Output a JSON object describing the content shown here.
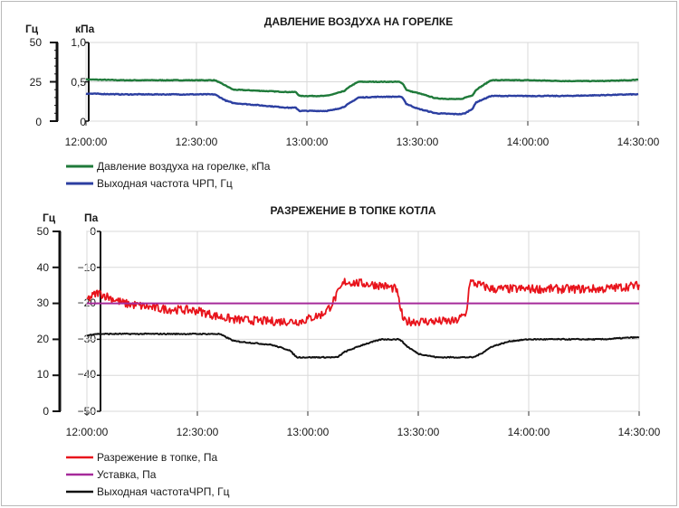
{
  "charts": [
    {
      "title": "ДАВЛЕНИЕ ВОЗДУХА НА ГОРЕЛКЕ",
      "left_unit": "Гц",
      "right_unit": "кПа",
      "left_ticks": [
        "50",
        "25",
        "0"
      ],
      "right_ticks": [
        "1,0",
        "0,5",
        "0"
      ],
      "x_ticks": [
        "12:00:00",
        "12:30:00",
        "13:00:00",
        "13:30:00",
        "14:00:00",
        "14:30:00"
      ],
      "legend": [
        "Давление воздуха на горелке, кПа",
        "Выходная частота ЧРП, Гц"
      ]
    },
    {
      "title": "РАЗРЕЖЕНИЕ В ТОПКЕ КОТЛА",
      "left_unit": "Гц",
      "right_unit": "Па",
      "left_ticks": [
        "50",
        "40",
        "30",
        "20",
        "10",
        "0"
      ],
      "right_ticks": [
        "0",
        "−10",
        "−20",
        "−30",
        "−40",
        "−50"
      ],
      "x_ticks": [
        "12:00:00",
        "12:30:00",
        "13:00:00",
        "13:30:00",
        "14:00:00",
        "14:30:00"
      ],
      "legend": [
        "Разрежение в топке, Па",
        "Уставка, Па",
        "Выходная частотаЧРП, Гц"
      ]
    }
  ],
  "chart_data": [
    {
      "type": "line",
      "title": "ДАВЛЕНИЕ ВОЗДУХА НА ГОРЕЛКЕ",
      "x_unit": "time",
      "x_range": [
        "12:00:00",
        "14:30:00"
      ],
      "left_axis": {
        "label": "Гц",
        "range": [
          0,
          50
        ],
        "ticks": [
          0,
          25,
          50
        ]
      },
      "right_axis": {
        "label": "кПа",
        "range": [
          0,
          1.0
        ],
        "ticks": [
          0,
          0.5,
          1.0
        ]
      },
      "series": [
        {
          "name": "Давление воздуха на горелке, кПа",
          "axis": "right",
          "color": "#1f7a3a",
          "noise": 0.004,
          "x": [
            "12:00",
            "12:10",
            "12:20",
            "12:30",
            "12:35",
            "12:38",
            "12:40",
            "12:45",
            "12:50",
            "12:55",
            "12:57",
            "12:58",
            "13:05",
            "13:07",
            "13:10",
            "13:12",
            "13:14",
            "13:20",
            "13:25",
            "13:26",
            "13:27",
            "13:28",
            "13:30",
            "13:35",
            "13:40",
            "13:42",
            "13:43",
            "13:45",
            "13:46",
            "13:50",
            "14:00",
            "14:10",
            "14:20",
            "14:28",
            "14:30"
          ],
          "y": [
            0.53,
            0.52,
            0.52,
            0.52,
            0.52,
            0.45,
            0.4,
            0.39,
            0.38,
            0.37,
            0.37,
            0.32,
            0.32,
            0.34,
            0.38,
            0.45,
            0.5,
            0.5,
            0.5,
            0.48,
            0.4,
            0.38,
            0.36,
            0.29,
            0.28,
            0.28,
            0.3,
            0.33,
            0.4,
            0.52,
            0.52,
            0.51,
            0.51,
            0.52,
            0.53
          ]
        },
        {
          "name": "Выходная частота ЧРП, Гц",
          "axis": "left",
          "color": "#2c3fa1",
          "noise": 0.25,
          "x": [
            "12:00",
            "12:10",
            "12:20",
            "12:30",
            "12:35",
            "12:38",
            "12:40",
            "12:45",
            "12:50",
            "12:55",
            "12:57",
            "12:58",
            "13:05",
            "13:07",
            "13:10",
            "13:12",
            "13:14",
            "13:20",
            "13:25",
            "13:26",
            "13:27",
            "13:28",
            "13:30",
            "13:35",
            "13:40",
            "13:42",
            "13:43",
            "13:45",
            "13:46",
            "13:50",
            "14:00",
            "14:10",
            "14:20",
            "14:28",
            "14:30"
          ],
          "y": [
            17.5,
            17,
            17,
            17,
            17,
            13,
            11.5,
            10.5,
            9.5,
            8.5,
            8.5,
            6.5,
            6.5,
            7,
            9,
            12,
            15,
            15.5,
            15.5,
            15,
            11,
            10,
            8,
            5,
            4.5,
            4.5,
            5,
            8,
            12,
            16,
            16,
            16,
            16.5,
            17,
            17
          ]
        }
      ]
    },
    {
      "type": "line",
      "title": "РАЗРЕЖЕНИЕ В ТОПКЕ КОТЛА",
      "x_unit": "time",
      "x_range": [
        "12:00:00",
        "14:30:00"
      ],
      "left_axis": {
        "label": "Гц",
        "range": [
          0,
          50
        ],
        "ticks": [
          0,
          10,
          20,
          30,
          40,
          50
        ]
      },
      "right_axis": {
        "label": "Па",
        "range": [
          -50,
          0
        ],
        "ticks": [
          -50,
          -40,
          -30,
          -20,
          -10,
          0
        ]
      },
      "series": [
        {
          "name": "Разрежение в топке, Па",
          "axis": "right",
          "color": "#e8141c",
          "noise": 1.2,
          "x": [
            "12:00",
            "12:03",
            "12:10",
            "12:20",
            "12:30",
            "12:35",
            "12:40",
            "12:50",
            "12:58",
            "13:04",
            "13:06",
            "13:10",
            "13:20",
            "13:24",
            "13:26",
            "13:30",
            "13:40",
            "13:43",
            "13:44",
            "13:50",
            "14:00",
            "14:10",
            "14:20",
            "14:30"
          ],
          "y": [
            -19,
            -17,
            -20,
            -21.5,
            -22,
            -23.5,
            -24.5,
            -25,
            -25,
            -23,
            -21,
            -14,
            -15,
            -16,
            -25,
            -25,
            -25,
            -23,
            -14,
            -16,
            -16,
            -16,
            -16,
            -15
          ]
        },
        {
          "name": "Уставка, Па",
          "axis": "right",
          "color": "#a62a9a",
          "noise": 0,
          "x": [
            "12:00",
            "14:30"
          ],
          "y": [
            -20,
            -20
          ]
        },
        {
          "name": "Выходная частотаЧРП, Гц",
          "axis": "left",
          "color": "#111111",
          "noise": 0.15,
          "x": [
            "12:00",
            "12:02",
            "12:10",
            "12:20",
            "12:30",
            "12:36",
            "12:38",
            "12:40",
            "12:45",
            "12:50",
            "12:55",
            "12:57",
            "13:00",
            "13:05",
            "13:08",
            "13:10",
            "13:15",
            "13:20",
            "13:25",
            "13:27",
            "13:30",
            "13:35",
            "13:40",
            "13:45",
            "13:47",
            "13:50",
            "13:55",
            "14:00",
            "14:10",
            "14:20",
            "14:28",
            "14:30"
          ],
          "y": [
            21,
            21.5,
            21.5,
            21.5,
            21.5,
            21.5,
            20.5,
            19.5,
            19,
            18.5,
            17,
            15,
            15,
            15,
            15,
            16.5,
            18.5,
            20,
            20,
            18,
            16,
            15,
            15,
            15,
            16,
            18,
            19.5,
            20,
            20,
            20,
            20.5,
            20.5
          ]
        }
      ]
    }
  ]
}
